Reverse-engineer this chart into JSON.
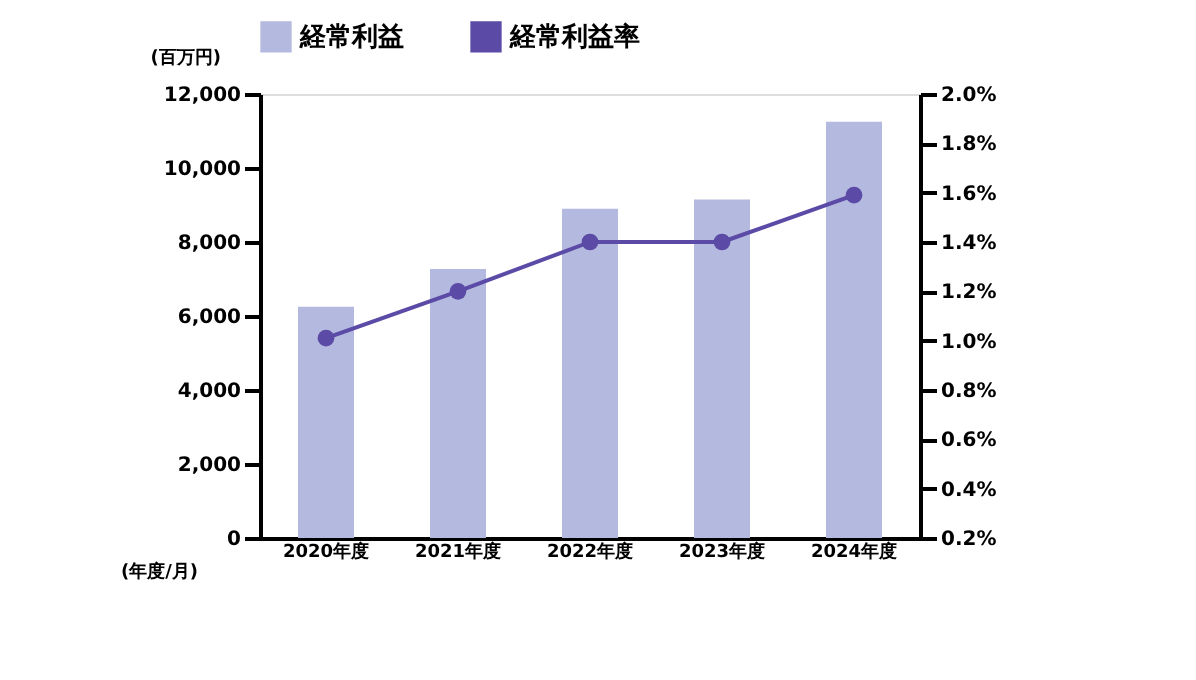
{
  "chart_data": {
    "type": "bar",
    "categories": [
      "2020年度",
      "2021年度",
      "2022年度",
      "2023年度",
      "2024年度"
    ],
    "series": [
      {
        "name": "経常利益",
        "color": "#b4b9df",
        "values": [
          6250,
          7270,
          8900,
          9150,
          11250
        ]
      },
      {
        "name": "経常利益率",
        "type": "line",
        "axis": "y2",
        "color": "#5b4aa6",
        "values": [
          1.01,
          1.2,
          1.4,
          1.4,
          1.59
        ]
      }
    ],
    "ylabel": "(百万円)",
    "xlabel": "(年度/月)",
    "ylim": [
      0,
      12000
    ],
    "yticks": [
      0,
      {
        "value": 2000,
        "label": "2,000"
      },
      {
        "value": 4000,
        "label": "4,000"
      },
      {
        "value": 6000,
        "label": "6,000"
      },
      {
        "value": 8000,
        "label": "8,000"
      },
      {
        "value": 10000,
        "label": "10,000"
      },
      {
        "value": 12000,
        "label": "12,000"
      }
    ],
    "y2lim": [
      0.2,
      2.0
    ],
    "y2ticks": [
      {
        "value": 0.2,
        "label": "0.2%"
      },
      {
        "value": 0.4,
        "label": "0.4%"
      },
      {
        "value": 0.6,
        "label": "0.6%"
      },
      {
        "value": 0.8,
        "label": "0.8%"
      },
      {
        "value": 1.0,
        "label": "1.0%"
      },
      {
        "value": 1.2,
        "label": "1.2%"
      },
      {
        "value": 1.4,
        "label": "1.4%"
      },
      {
        "value": 1.6,
        "label": "1.6%"
      },
      {
        "value": 1.8,
        "label": "1.8%"
      },
      {
        "value": 2.0,
        "label": "2.0%"
      }
    ],
    "marker": "circle",
    "grid": false,
    "legend": "top"
  }
}
